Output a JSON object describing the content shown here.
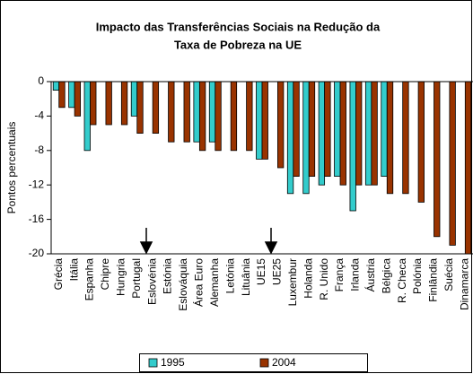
{
  "chart_data": {
    "type": "bar",
    "title": [
      "Impacto das Transferências Sociais na Redução da",
      "Taxa de Pobreza na UE"
    ],
    "y_label": "Pontos percentuais",
    "categories": [
      "Grécia",
      "Itália",
      "Espanha",
      "Chipre",
      "Hungria",
      "Portugal",
      "Eslovénia",
      "Estónia",
      "Eslováquia",
      "Área Euro",
      "Alemanha",
      "Letónia",
      "Lituânia",
      "UE15",
      "UE25",
      "Luxembur",
      "Holanda",
      "R. Unido",
      "França",
      "Irlanda",
      "Áustria",
      "Bélgica",
      "R. Checa",
      "Polónia",
      "Finlândia",
      "Suécia",
      "Dinamarca"
    ],
    "series": [
      {
        "name": "1995",
        "color": "#33cccc",
        "values": [
          -1,
          -3,
          -8,
          null,
          null,
          -4,
          null,
          null,
          null,
          -7,
          -7,
          null,
          null,
          -9,
          null,
          -13,
          -13,
          -12,
          -11,
          -15,
          -12,
          -11,
          null,
          null,
          null,
          null,
          null
        ]
      },
      {
        "name": "2004",
        "color": "#993300",
        "values": [
          -3,
          -4,
          -5,
          -5,
          -5,
          -6,
          -6,
          -7,
          -7,
          -8,
          -8,
          -8,
          -8,
          -9,
          -10,
          -11,
          -11,
          -11,
          -12,
          -12,
          -12,
          -13,
          -13,
          -14,
          -18,
          -19,
          -20
        ]
      }
    ],
    "ylim": [
      -20,
      0
    ],
    "yticks": [
      0,
      -4,
      -8,
      -12,
      -16,
      -20
    ],
    "legend": "bottom"
  }
}
